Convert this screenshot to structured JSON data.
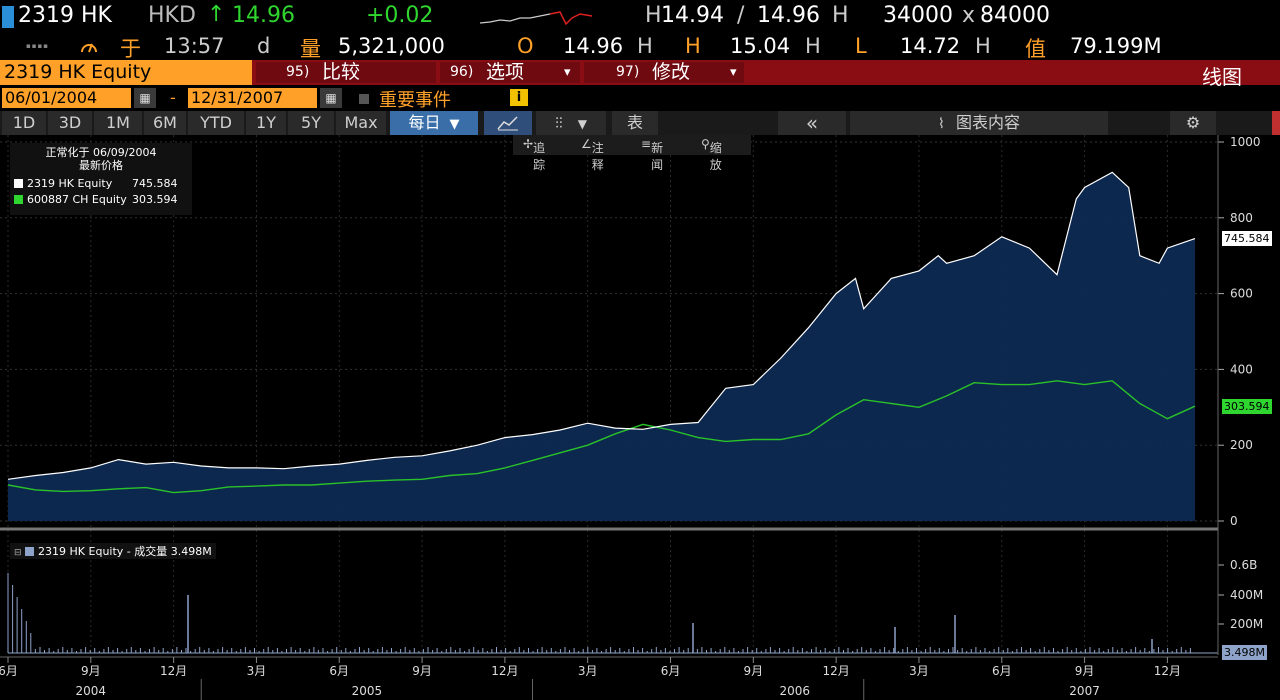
{
  "header": {
    "ticker": "2319 HK",
    "currency": "HKD",
    "arrow": "↑",
    "price": "14.96",
    "change": "+0.02",
    "high_label": "H",
    "bid": "14.94",
    "slash": "/",
    "ask": "14.96",
    "ask_h": "H",
    "bid_size": "34000",
    "x": "x",
    "ask_size": "84000",
    "row2_dots": "▪▪▪▪",
    "at_label": "于",
    "time": "13:57",
    "time_suffix": "d",
    "vol_label": "量",
    "volume": "5,321,000",
    "open_label": "O",
    "open": "14.96",
    "open_h": "H",
    "high_label2": "H",
    "high": "15.04",
    "high_h": "H",
    "low_label": "L",
    "low": "14.72",
    "low_h": "H",
    "value_label": "值",
    "value": "79.199M"
  },
  "menu": {
    "security": "2319 HK Equity",
    "compare_num": "95)",
    "compare": "比较",
    "options_num": "96)",
    "options": "选项",
    "edit_num": "97)",
    "edit": "修改",
    "chart_type": "线图",
    "dropdown": "▾"
  },
  "dates": {
    "start": "06/01/2004",
    "dash": "-",
    "end": "12/31/2007",
    "events": "重要事件",
    "info": "i"
  },
  "periods": [
    "1D",
    "3D",
    "1M",
    "6M",
    "YTD",
    "1Y",
    "5Y",
    "Max"
  ],
  "toolbar": {
    "frequency": "每日",
    "freq_arrow": "▼",
    "table": "表",
    "collapse": "«",
    "chart_content": "图表内容"
  },
  "subtools": [
    "追踪",
    "注释",
    "新闻",
    "缩放"
  ],
  "legend": {
    "title1": "正常化于 06/09/2004",
    "title2": "最新价格",
    "s1_name": "2319 HK Equity",
    "s1_value": "745.584",
    "s2_name": "600887 CH Equity",
    "s2_value": "303.594"
  },
  "volume_panel": {
    "label": "2319 HK Equity - 成交量",
    "value": "3.498M"
  },
  "colors": {
    "amber": "#ffa028",
    "green": "#2fd62f",
    "red_bar": "#8b0d14",
    "area_fill": "#0e2a52",
    "series1": "#ffffff",
    "series2": "#29c229"
  },
  "chart_data": {
    "type": "line",
    "y_ticks": [
      "1000",
      "800",
      "600",
      "400",
      "200",
      "0"
    ],
    "ylim": [
      0,
      1000
    ],
    "vol_ticks": [
      "0.6B",
      "400M",
      "200M"
    ],
    "x_month_labels": [
      "6月",
      "9月",
      "12月",
      "3月",
      "6月",
      "9月",
      "12月",
      "3月",
      "6月",
      "9月",
      "12月",
      "3月",
      "6月",
      "9月",
      "12月"
    ],
    "x_year_labels": [
      "2004",
      "2005",
      "2006",
      "2007"
    ],
    "x_month_index": [
      0,
      3,
      6,
      9,
      12,
      15,
      18,
      21,
      24,
      27,
      30,
      33,
      36,
      39,
      42
    ],
    "series": [
      {
        "name": "2319 HK Equity",
        "x": [
          0,
          1,
          2,
          3,
          4,
          5,
          6,
          7,
          8,
          9,
          10,
          11,
          12,
          13,
          14,
          15,
          16,
          17,
          18,
          19,
          20,
          21,
          22,
          23,
          24,
          25,
          26,
          27,
          28,
          29,
          30,
          30.7,
          31,
          32,
          33,
          33.7,
          34,
          35,
          36,
          37,
          38,
          38.7,
          39,
          40,
          40.6,
          41,
          41.7,
          42,
          43
        ],
        "values": [
          110,
          120,
          128,
          140,
          162,
          150,
          155,
          145,
          140,
          140,
          138,
          145,
          150,
          160,
          168,
          172,
          185,
          200,
          220,
          228,
          240,
          258,
          245,
          242,
          255,
          260,
          350,
          360,
          430,
          510,
          600,
          640,
          560,
          640,
          660,
          700,
          680,
          700,
          750,
          720,
          650,
          850,
          880,
          920,
          880,
          700,
          680,
          720,
          745
        ]
      },
      {
        "name": "600887 CH Equity",
        "x": [
          0,
          1,
          2,
          3,
          4,
          5,
          6,
          7,
          8,
          9,
          10,
          11,
          12,
          13,
          14,
          15,
          16,
          17,
          18,
          19,
          20,
          21,
          22,
          23,
          24,
          25,
          26,
          27,
          28,
          29,
          30,
          31,
          32,
          33,
          34,
          35,
          36,
          37,
          38,
          39,
          40,
          41,
          42,
          43
        ],
        "values": [
          95,
          82,
          78,
          80,
          85,
          88,
          75,
          80,
          90,
          92,
          95,
          95,
          100,
          105,
          108,
          110,
          120,
          125,
          140,
          160,
          180,
          200,
          230,
          255,
          240,
          220,
          210,
          215,
          215,
          230,
          280,
          320,
          310,
          300,
          330,
          365,
          360,
          360,
          370,
          360,
          370,
          310,
          270,
          303
        ]
      }
    ]
  }
}
